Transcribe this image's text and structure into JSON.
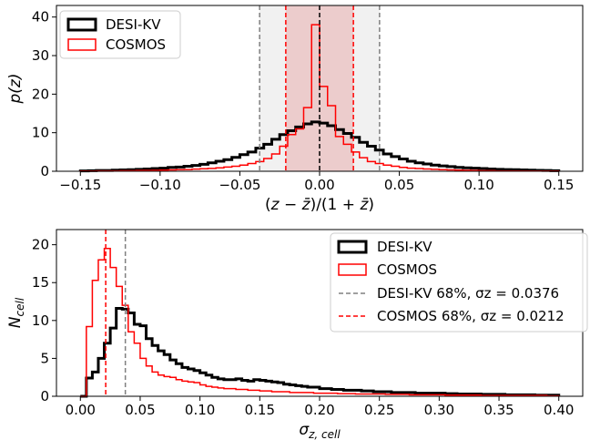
{
  "chart_data": [
    {
      "type": "histogram",
      "xlabel": "(z − z̄)/(1 + z̄)",
      "ylabel": "p(z)",
      "xlim": [
        -0.165,
        0.165
      ],
      "ylim": [
        0,
        43
      ],
      "xticks": [
        -0.15,
        -0.1,
        -0.05,
        0.0,
        0.05,
        0.1,
        0.15
      ],
      "xtick_labels": [
        "−0.15",
        "−0.10",
        "−0.05",
        "0.00",
        "0.05",
        "0.10",
        "0.15"
      ],
      "yticks": [
        0,
        10,
        20,
        30,
        40
      ],
      "ytick_labels": [
        "0",
        "10",
        "20",
        "30",
        "40"
      ],
      "legend_position": "top-left",
      "bin_edges": [
        -0.15,
        -0.145,
        -0.14,
        -0.135,
        -0.13,
        -0.125,
        -0.12,
        -0.115,
        -0.11,
        -0.105,
        -0.1,
        -0.095,
        -0.09,
        -0.085,
        -0.08,
        -0.075,
        -0.07,
        -0.065,
        -0.06,
        -0.055,
        -0.05,
        -0.045,
        -0.04,
        -0.035,
        -0.03,
        -0.025,
        -0.02,
        -0.015,
        -0.01,
        -0.005,
        0,
        0.005,
        0.01,
        0.015,
        0.02,
        0.025,
        0.03,
        0.035,
        0.04,
        0.045,
        0.05,
        0.055,
        0.06,
        0.065,
        0.07,
        0.075,
        0.08,
        0.085,
        0.09,
        0.095,
        0.1,
        0.105,
        0.11,
        0.115,
        0.12,
        0.125,
        0.13,
        0.135,
        0.14,
        0.145,
        0.15
      ],
      "series": [
        {
          "name": "DESI-KV",
          "color": "#000000",
          "linewidth": 3,
          "values": [
            0.1,
            0.15,
            0.2,
            0.2,
            0.3,
            0.35,
            0.4,
            0.5,
            0.6,
            0.7,
            0.8,
            1.0,
            1.1,
            1.3,
            1.5,
            1.8,
            2.2,
            2.6,
            3.0,
            3.6,
            4.3,
            5.0,
            6.0,
            7.0,
            8.3,
            9.5,
            10.5,
            11.5,
            12.3,
            12.8,
            12.5,
            11.8,
            10.8,
            9.8,
            8.8,
            7.5,
            6.5,
            5.5,
            4.5,
            3.8,
            3.2,
            2.6,
            2.2,
            1.9,
            1.6,
            1.4,
            1.2,
            1.0,
            0.9,
            0.8,
            0.7,
            0.6,
            0.5,
            0.45,
            0.4,
            0.35,
            0.3,
            0.25,
            0.2,
            0.15
          ]
        },
        {
          "name": "COSMOS",
          "color": "#ff0000",
          "linewidth": 1.5,
          "values": [
            0.05,
            0.05,
            0.1,
            0.1,
            0.1,
            0.15,
            0.15,
            0.2,
            0.2,
            0.25,
            0.3,
            0.35,
            0.4,
            0.45,
            0.55,
            0.65,
            0.75,
            0.9,
            1.1,
            1.3,
            1.6,
            2.0,
            2.5,
            3.3,
            4.5,
            6.5,
            9.5,
            11.0,
            16.5,
            38.0,
            22.0,
            17.0,
            9.0,
            7.0,
            5.0,
            3.5,
            2.5,
            2.0,
            1.6,
            1.3,
            1.0,
            0.8,
            0.7,
            0.6,
            0.5,
            0.4,
            0.35,
            0.3,
            0.25,
            0.2,
            0.15,
            0.15,
            0.1,
            0.1,
            0.1,
            0.05,
            0.05,
            0.05,
            0.05,
            0.05
          ]
        }
      ],
      "shaded_bands": [
        {
          "range": [
            -0.0376,
            0.0376
          ],
          "color": "#c8c8c8",
          "opacity": 0.25
        },
        {
          "range": [
            -0.0212,
            0.0212
          ],
          "color": "#e06060",
          "opacity": 0.25
        }
      ],
      "vlines": [
        {
          "x": -0.0376,
          "color": "#808080"
        },
        {
          "x": 0.0376,
          "color": "#808080"
        },
        {
          "x": -0.0212,
          "color": "#ff0000"
        },
        {
          "x": 0.0212,
          "color": "#ff0000"
        },
        {
          "x": 0.0,
          "color": "#000000"
        }
      ]
    },
    {
      "type": "histogram",
      "xlabel": "σz,cell",
      "ylabel": "Ncell",
      "xlim": [
        -0.02,
        0.42
      ],
      "ylim": [
        0,
        22
      ],
      "xticks": [
        0.0,
        0.05,
        0.1,
        0.15,
        0.2,
        0.25,
        0.3,
        0.35,
        0.4
      ],
      "xtick_labels": [
        "0.00",
        "0.05",
        "0.10",
        "0.15",
        "0.20",
        "0.25",
        "0.30",
        "0.35",
        "0.40"
      ],
      "yticks": [
        0,
        5,
        10,
        15,
        20
      ],
      "ytick_labels": [
        "0",
        "5",
        "10",
        "15",
        "20"
      ],
      "legend_position": "top-right",
      "bin_width": 0.005,
      "bin_start": 0.0,
      "series": [
        {
          "name": "DESI-KV",
          "color": "#000000",
          "linewidth": 3,
          "values": [
            0,
            2.4,
            3.2,
            5.0,
            7.0,
            9.0,
            11.6,
            11.5,
            11.0,
            9.5,
            9.3,
            7.6,
            6.7,
            6.0,
            5.5,
            4.8,
            4.3,
            3.8,
            3.6,
            3.4,
            3.1,
            2.8,
            2.5,
            2.3,
            2.2,
            2.2,
            2.3,
            2.1,
            2.0,
            2.2,
            2.1,
            2.0,
            1.9,
            1.8,
            1.6,
            1.5,
            1.4,
            1.3,
            1.2,
            1.2,
            1.0,
            1.0,
            0.9,
            0.9,
            0.8,
            0.8,
            0.8,
            0.7,
            0.7,
            0.6,
            0.6,
            0.6,
            0.5,
            0.5,
            0.5,
            0.5,
            0.4,
            0.4,
            0.4,
            0.4,
            0.4,
            0.35,
            0.35,
            0.3,
            0.3,
            0.3,
            0.3,
            0.25,
            0.25,
            0.25,
            0.25,
            0.2,
            0.2,
            0.2,
            0.2,
            0.2,
            0.15,
            0.15,
            0.15,
            0.15
          ]
        },
        {
          "name": "COSMOS",
          "color": "#ff0000",
          "linewidth": 1.5,
          "values": [
            0,
            9.2,
            15.3,
            18.0,
            19.5,
            17.0,
            14.5,
            12.0,
            8.5,
            7.0,
            5.0,
            4.0,
            3.2,
            2.8,
            2.6,
            2.5,
            2.2,
            2.0,
            1.9,
            1.8,
            1.5,
            1.3,
            1.2,
            1.1,
            1.0,
            1.0,
            0.9,
            0.9,
            0.8,
            0.8,
            0.7,
            0.7,
            0.6,
            0.6,
            0.6,
            0.5,
            0.5,
            0.5,
            0.5,
            0.4,
            0.4,
            0.4,
            0.4,
            0.35,
            0.35,
            0.35,
            0.3,
            0.3,
            0.3,
            0.3,
            0.3,
            0.25,
            0.25,
            0.25,
            0.25,
            0.2,
            0.2,
            0.2,
            0.2,
            0.2,
            0.2,
            0.15,
            0.15,
            0.15,
            0.15,
            0.15,
            0.15,
            0.1,
            0.1,
            0.1,
            0.1,
            0.1,
            0.1,
            0.1,
            0.1,
            0.1,
            0.1,
            0.1,
            0.05,
            0.05
          ]
        }
      ],
      "vlines": [
        {
          "x": 0.0376,
          "color": "#808080",
          "label": "DESI-KV 68%, σz = 0.0376"
        },
        {
          "x": 0.0212,
          "color": "#ff0000",
          "label": "COSMOS 68%, σz = 0.0212"
        }
      ]
    }
  ],
  "legends": {
    "top": [
      "DESI-KV",
      "COSMOS"
    ],
    "bottom": [
      "DESI-KV",
      "COSMOS",
      "DESI-KV 68%, σz = 0.0376",
      "COSMOS 68%, σz = 0.0212"
    ]
  }
}
